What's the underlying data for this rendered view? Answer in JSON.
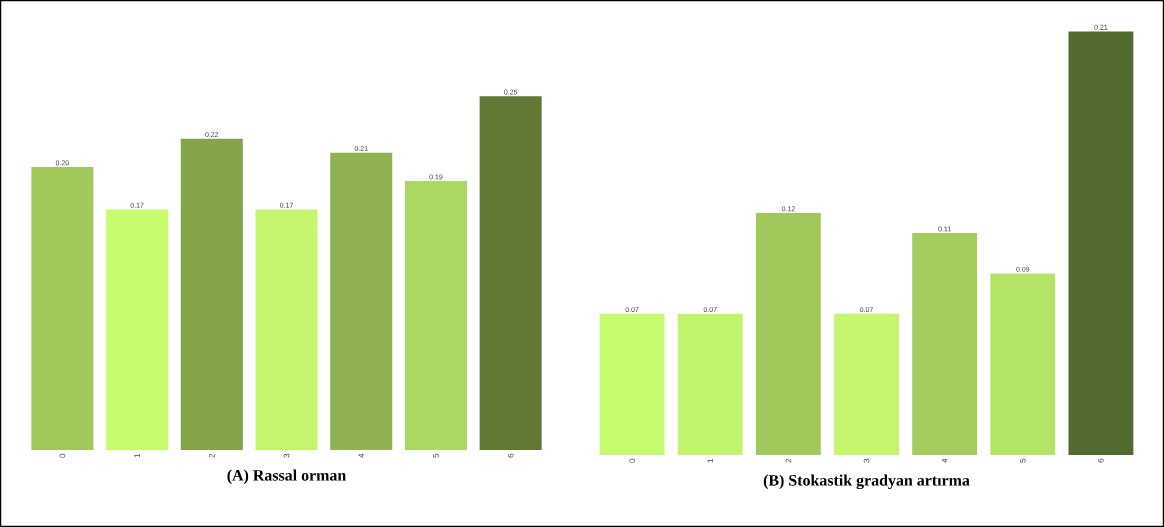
{
  "chart_data": [
    {
      "type": "bar",
      "title": "(A) Rassal orman",
      "categories": [
        "0",
        "1",
        "2",
        "3",
        "4",
        "5",
        "6"
      ],
      "values": [
        0.2,
        0.17,
        0.22,
        0.17,
        0.21,
        0.19,
        0.25
      ],
      "value_labels": [
        "0.20",
        "0.17",
        "0.22",
        "0.17",
        "0.21",
        "0.19",
        "0.25"
      ],
      "colors": [
        "#a2c85c",
        "#c6fb6e",
        "#84a449",
        "#c4f56c",
        "#8fb150",
        "#abd862",
        "#627935"
      ],
      "tick_labels": "x"
    },
    {
      "type": "bar",
      "title": "(B) Stokastik gradyan artırma",
      "categories": [
        "0",
        "1",
        "2",
        "3",
        "4",
        "5",
        "6"
      ],
      "values": [
        0.07,
        0.07,
        0.12,
        0.07,
        0.11,
        0.09,
        0.21
      ],
      "value_labels": [
        "0.07",
        "0.07",
        "0.12",
        "0.07",
        "0.11",
        "0.09",
        "0.21"
      ],
      "colors": [
        "#c6fb6e",
        "#c2f36c",
        "#a2c85c",
        "#c4f56c",
        "#a4cd5e",
        "#b3e466",
        "#546b30"
      ],
      "tick_labels": "x"
    }
  ]
}
